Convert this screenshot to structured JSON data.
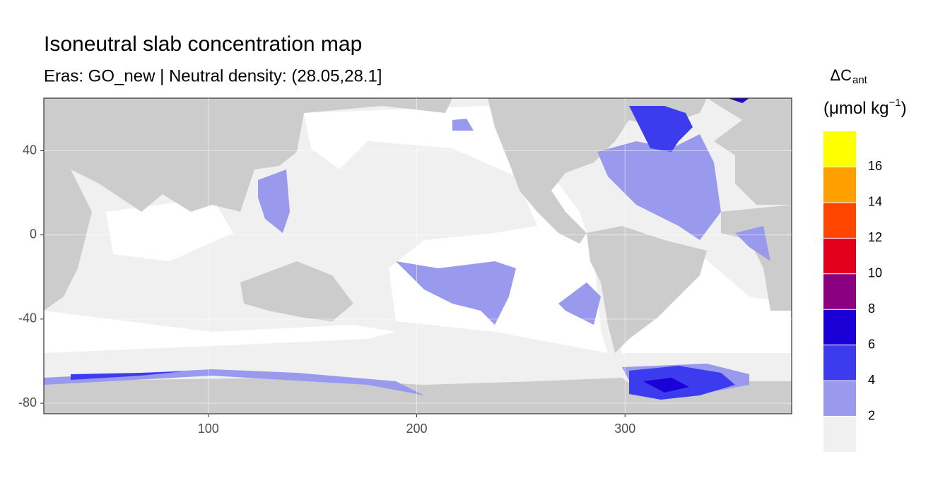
{
  "chart_data": {
    "type": "map",
    "title": "Isoneutral slab concentration map",
    "subtitle": "Eras: GO_new | Neutral density: (28.05,28.1]",
    "xlim": [
      21,
      380
    ],
    "ylim": [
      -85,
      65
    ],
    "xticks": [
      100,
      200,
      300
    ],
    "yticks": [
      -80,
      -40,
      0,
      40
    ],
    "grid": true,
    "legend": {
      "title_symbol": "ΔC",
      "title_subscript": "ant",
      "unit_open": "(μmol kg",
      "unit_superscript": "−1",
      "unit_close": ")",
      "breaks": [
        2,
        4,
        6,
        8,
        10,
        12,
        14,
        16
      ],
      "colors": [
        "#f0f0f0",
        "#9999ee",
        "#3c3cee",
        "#1a00d6",
        "#8b0080",
        "#e3001b",
        "#ff4500",
        "#ffa000",
        "#ffff00"
      ]
    }
  }
}
